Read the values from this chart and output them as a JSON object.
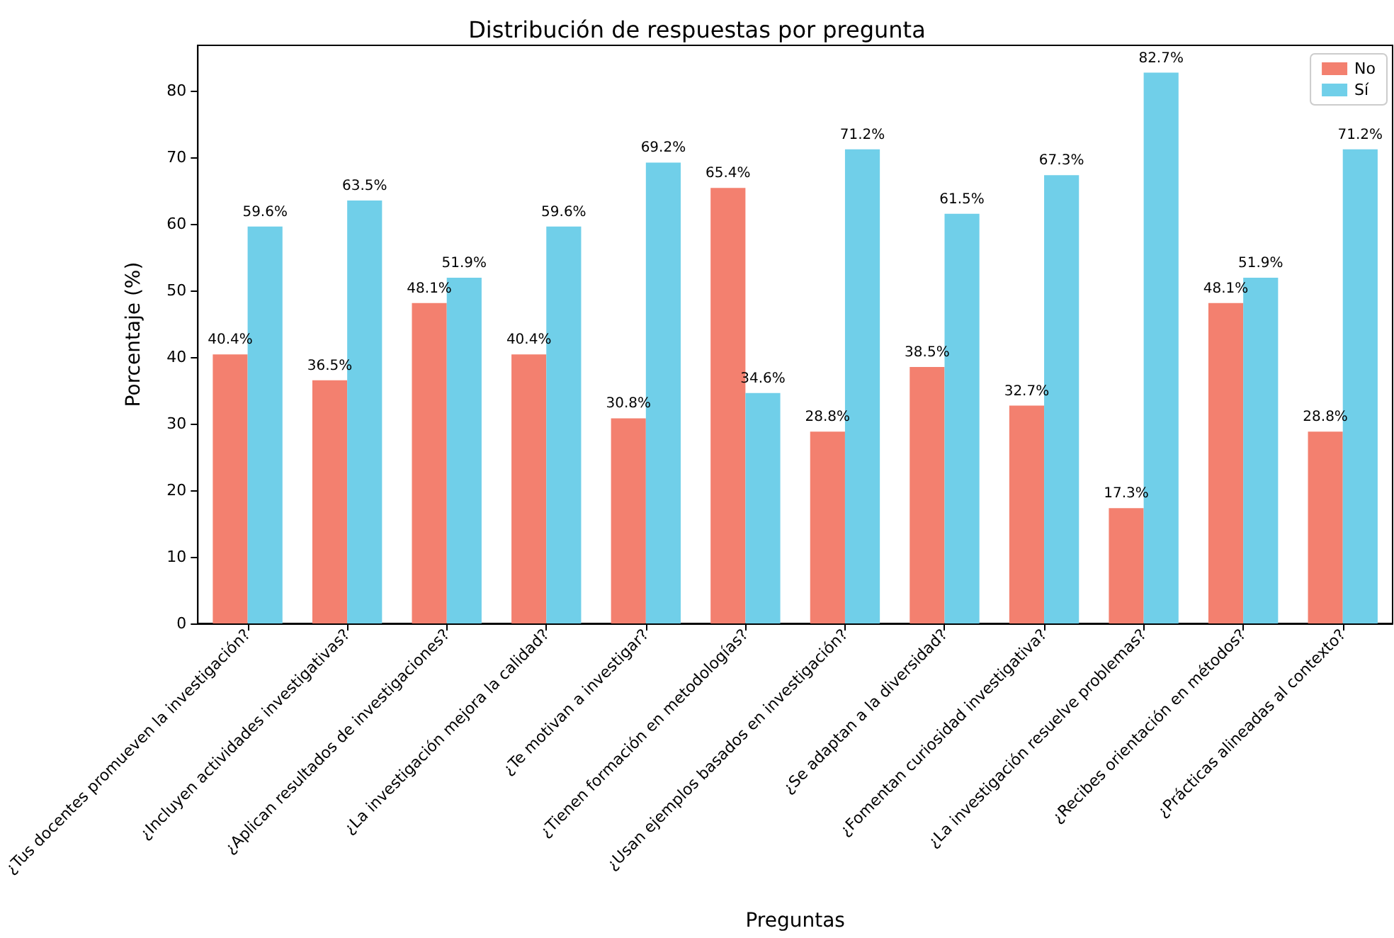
{
  "chart_data": {
    "type": "bar",
    "title": "Distribución de respuestas por pregunta",
    "xlabel": "Preguntas",
    "ylabel": "Porcentaje (%)",
    "categories": [
      "¿Tus docentes promueven la investigación?",
      "¿Incluyen actividades investigativas?",
      "¿Aplican resultados de investigaciones?",
      "¿La investigación mejora la calidad?",
      "¿Te motivan a investigar?",
      "¿Tienen formación en metodologías?",
      "¿Usan ejemplos basados en investigación?",
      "¿Se adaptan a la diversidad?",
      "¿Fomentan curiosidad investigativa?",
      "¿La investigación resuelve problemas?",
      "¿Recibes orientación en métodos?",
      "¿Prácticas alineadas al contexto?"
    ],
    "series": [
      {
        "name": "No",
        "color": "#f3806f",
        "values": [
          40.4,
          36.5,
          48.1,
          40.4,
          30.8,
          65.4,
          28.8,
          38.5,
          32.7,
          17.3,
          48.1,
          28.8
        ],
        "value_labels": [
          "40.4%",
          "36.5%",
          "48.1%",
          "40.4%",
          "30.8%",
          "65.4%",
          "28.8%",
          "38.5%",
          "32.7%",
          "17.3%",
          "48.1%",
          "28.8%"
        ]
      },
      {
        "name": "Sí",
        "color": "#70cfe9",
        "values": [
          59.6,
          63.5,
          51.9,
          59.6,
          69.2,
          34.6,
          71.2,
          61.5,
          67.3,
          82.7,
          51.9,
          71.2
        ],
        "value_labels": [
          "59.6%",
          "63.5%",
          "51.9%",
          "59.6%",
          "69.2%",
          "34.6%",
          "71.2%",
          "61.5%",
          "67.3%",
          "82.7%",
          "51.9%",
          "71.2%"
        ]
      }
    ],
    "ylim": [
      0,
      86.8
    ],
    "yticks": [
      0,
      10,
      20,
      30,
      40,
      50,
      60,
      70,
      80
    ],
    "grid": false,
    "legend": "top right"
  }
}
